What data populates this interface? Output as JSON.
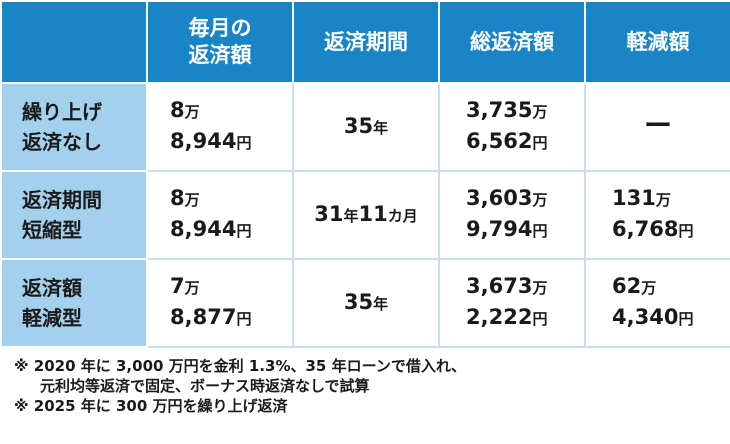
{
  "header": {
    "col1_line1": "毎月の",
    "col1_line2": "返済額",
    "col2": "返済期間",
    "col3": "総返済額",
    "col4": "軽減額"
  },
  "units": {
    "man": "万",
    "yen": "円",
    "nen": "年",
    "kagetsu": "カ月"
  },
  "rows": [
    {
      "label_line1": "繰り上げ",
      "label_line2": "返済なし",
      "monthly_a": "8",
      "monthly_b": "8,944",
      "period_years": "35",
      "period_months": "",
      "total_a": "3,735",
      "total_b": "6,562",
      "reduction": "ー"
    },
    {
      "label_line1": "返済期間",
      "label_line2": "短縮型",
      "monthly_a": "8",
      "monthly_b": "8,944",
      "period_years": "31",
      "period_months": "11",
      "total_a": "3,603",
      "total_b": "9,794",
      "reduction_a": "131",
      "reduction_b": "6,768"
    },
    {
      "label_line1": "返済額",
      "label_line2": "軽減型",
      "monthly_a": "7",
      "monthly_b": "8,877",
      "period_years": "35",
      "period_months": "",
      "total_a": "3,673",
      "total_b": "2,222",
      "reduction_a": "62",
      "reduction_b": "4,340"
    }
  ],
  "notes": {
    "note1_line1": "※ 2020 年に 3,000 万円を金利 1.3%、35 年ローンで借入れ、",
    "note1_line2": "元利均等返済で固定、ボーナス時返済なしで試算",
    "note2": "※ 2025 年に 300 万円を繰り上げ返済"
  }
}
